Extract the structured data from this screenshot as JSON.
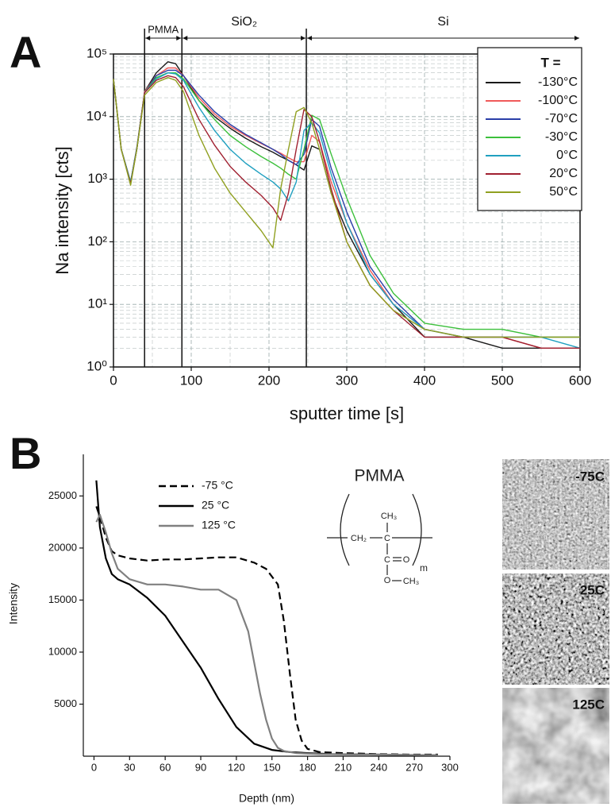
{
  "chart_data": [
    {
      "type": "line",
      "panel_letter": "A",
      "log_y": true,
      "grid": true,
      "y_label": "Na intensity [cts]",
      "x_label": "sputter time [s]",
      "xlim": [
        0,
        600
      ],
      "ylim": [
        1,
        100000
      ],
      "xticks": [
        0,
        100,
        200,
        300,
        400,
        500,
        600
      ],
      "yticks": [
        {
          "value": 1,
          "label": "10⁰"
        },
        {
          "value": 10,
          "label": "10¹"
        },
        {
          "value": 100,
          "label": "10²"
        },
        {
          "value": 1000,
          "label": "10³"
        },
        {
          "value": 10000,
          "label": "10⁴"
        },
        {
          "value": 100000,
          "label": "10⁵"
        }
      ],
      "regions": [
        {
          "label": "PMMA",
          "start": 40,
          "end": 88
        },
        {
          "label": "SiO₂",
          "start": 88,
          "end": 248
        },
        {
          "label": "Si",
          "start": 248,
          "end": 600
        }
      ],
      "legend_title": "T =",
      "legend": "upper right",
      "x": [
        0,
        10,
        22,
        30,
        40,
        55,
        70,
        80,
        90,
        110,
        130,
        150,
        170,
        190,
        205,
        215,
        225,
        235,
        245,
        255,
        265,
        280,
        300,
        330,
        360,
        400,
        450,
        500,
        550,
        600
      ],
      "series": [
        {
          "name": "-130°C",
          "color": "#1a1a1a",
          "values": [
            40000,
            3000,
            900,
            3000,
            25000,
            50000,
            75000,
            70000,
            45000,
            18000,
            10000,
            6500,
            4500,
            3300,
            2700,
            2300,
            2000,
            1700,
            1400,
            3400,
            3000,
            600,
            150,
            30,
            10,
            3,
            3,
            2,
            2,
            2
          ]
        },
        {
          "name": "-100°C",
          "color": "#f05a5a",
          "values": [
            40000,
            3000,
            900,
            3000,
            25000,
            45000,
            60000,
            60000,
            45000,
            20000,
            11000,
            7000,
            5000,
            3700,
            3000,
            2600,
            2200,
            1900,
            1900,
            5000,
            4000,
            900,
            200,
            35,
            10,
            4,
            3,
            3,
            2,
            2
          ]
        },
        {
          "name": "-70°C",
          "color": "#2a3fa8",
          "values": [
            40000,
            3000,
            900,
            3200,
            24000,
            45000,
            55000,
            55000,
            45000,
            22000,
            12000,
            7500,
            5200,
            3800,
            3000,
            2500,
            2000,
            1700,
            2500,
            9000,
            7000,
            1500,
            300,
            40,
            12,
            4,
            3,
            3,
            3,
            3
          ]
        },
        {
          "name": "-30°C",
          "color": "#3cc03c",
          "values": [
            40000,
            3000,
            900,
            3000,
            24000,
            42000,
            50000,
            50000,
            40000,
            18000,
            9000,
            5000,
            3300,
            2300,
            1800,
            1500,
            1200,
            1000,
            3000,
            10500,
            9000,
            2500,
            500,
            60,
            15,
            5,
            4,
            4,
            3,
            3
          ]
        },
        {
          "name": "0°C",
          "color": "#20a0c0",
          "values": [
            40000,
            3000,
            900,
            3000,
            24000,
            40000,
            50000,
            48000,
            38000,
            14000,
            6000,
            3000,
            1800,
            1200,
            900,
            700,
            450,
            900,
            6000,
            8000,
            5500,
            1200,
            200,
            30,
            10,
            4,
            3,
            3,
            3,
            2
          ]
        },
        {
          "name": "20°C",
          "color": "#a02030",
          "values": [
            40000,
            3000,
            850,
            3000,
            24000,
            38000,
            45000,
            42000,
            30000,
            9000,
            3500,
            1600,
            900,
            550,
            350,
            220,
            600,
            3000,
            13000,
            10000,
            4000,
            700,
            100,
            20,
            8,
            3,
            3,
            3,
            2,
            2
          ]
        },
        {
          "name": "50°C",
          "color": "#90a020",
          "values": [
            40000,
            3000,
            800,
            3000,
            22000,
            35000,
            42000,
            38000,
            25000,
            5000,
            1500,
            600,
            300,
            150,
            80,
            700,
            3000,
            12000,
            14000,
            8000,
            3000,
            600,
            100,
            20,
            8,
            4,
            3,
            3,
            3,
            3
          ]
        }
      ]
    },
    {
      "type": "line",
      "panel_letter": "B",
      "log_y": false,
      "grid": false,
      "y_label": "Intensity",
      "x_label": "Depth (nm)",
      "xlim": [
        -9,
        300
      ],
      "ylim": [
        0,
        29000
      ],
      "xticks": [
        0,
        30,
        60,
        90,
        120,
        150,
        180,
        210,
        240,
        270,
        300
      ],
      "yticks": [
        5000,
        10000,
        15000,
        20000,
        25000
      ],
      "legend": "upper left",
      "series": [
        {
          "name": "-75 °C",
          "color": "#000000",
          "dash": true,
          "x": [
            2,
            5,
            10,
            15,
            20,
            30,
            45,
            60,
            75,
            90,
            105,
            120,
            135,
            145,
            155,
            160,
            165,
            170,
            175,
            180,
            190,
            210,
            240,
            270,
            290
          ],
          "values": [
            24000,
            23000,
            21000,
            19700,
            19300,
            19000,
            18800,
            18900,
            18900,
            19000,
            19100,
            19100,
            18600,
            18000,
            16500,
            13000,
            8000,
            3500,
            1500,
            700,
            400,
            300,
            200,
            150,
            150
          ]
        },
        {
          "name": "25 °C",
          "color": "#000000",
          "dash": false,
          "x": [
            2,
            5,
            10,
            15,
            20,
            30,
            45,
            60,
            75,
            90,
            105,
            120,
            135,
            150,
            165,
            180,
            200,
            240,
            270,
            290
          ],
          "values": [
            26500,
            22000,
            19000,
            17500,
            17000,
            16500,
            15200,
            13500,
            11000,
            8500,
            5500,
            2800,
            1200,
            600,
            400,
            300,
            200,
            150,
            100,
            100
          ]
        },
        {
          "name": "125 °C",
          "color": "#808080",
          "dash": false,
          "x": [
            2,
            5,
            10,
            15,
            20,
            30,
            45,
            60,
            75,
            90,
            105,
            120,
            130,
            135,
            140,
            145,
            150,
            155,
            160,
            170,
            190,
            240,
            290
          ],
          "values": [
            22500,
            23200,
            21500,
            19500,
            18000,
            17000,
            16500,
            16500,
            16300,
            16000,
            16000,
            15000,
            12000,
            9000,
            6000,
            3500,
            1700,
            800,
            500,
            300,
            200,
            150,
            100
          ]
        }
      ]
    }
  ],
  "structure": {
    "title": "PMMA",
    "atoms": [
      "CH₃",
      "CH₂",
      "C",
      "C",
      "O",
      "O",
      "CH₃"
    ],
    "subscript": "m"
  },
  "images": [
    {
      "label": "-75C"
    },
    {
      "label": "25C"
    },
    {
      "label": "125C"
    }
  ]
}
